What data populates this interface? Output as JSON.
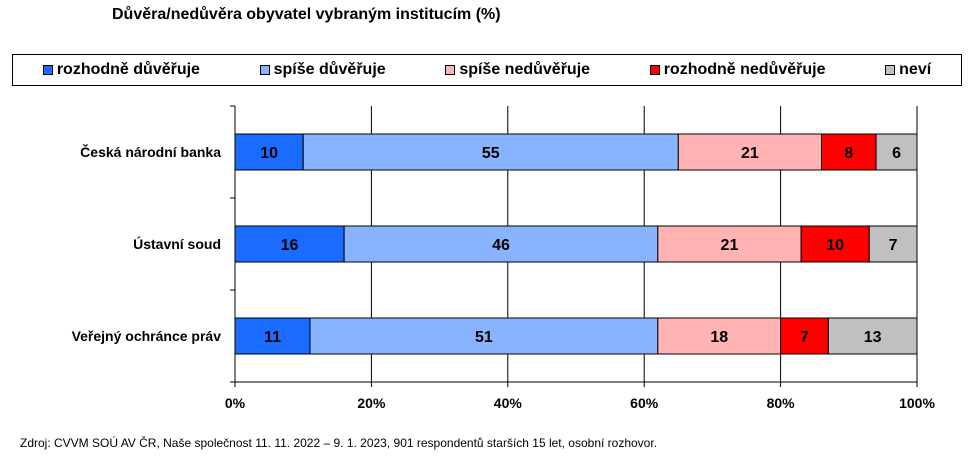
{
  "chart_data": {
    "type": "bar",
    "orientation": "horizontal",
    "stacked": true,
    "title": "Důvěra/nedůvěra obyvatel vybraným institucím (%)",
    "categories": [
      "Česká národní banka",
      "Ústavní soud",
      "Veřejný ochránce práv"
    ],
    "series": [
      {
        "name": "rozhodně důvěřuje",
        "color": "#1a6bff",
        "values": [
          10,
          16,
          11
        ]
      },
      {
        "name": "spíše důvěřuje",
        "color": "#88b4ff",
        "values": [
          55,
          46,
          51
        ]
      },
      {
        "name": "spíše nedůvěřuje",
        "color": "#ffb3b3",
        "values": [
          21,
          21,
          18
        ]
      },
      {
        "name": "rozhodně nedůvěřuje",
        "color": "#ff0000",
        "values": [
          8,
          10,
          7
        ]
      },
      {
        "name": "neví",
        "color": "#c0c0c0",
        "values": [
          6,
          7,
          13
        ]
      }
    ],
    "xlim": [
      0,
      100
    ],
    "xticks": [
      "0%",
      "20%",
      "40%",
      "60%",
      "80%",
      "100%"
    ],
    "legend_position": "top",
    "grid": "vertical"
  },
  "footer": "Zdroj: CVVM SOÚ AV ČR, Naše společnost 11. 11. 2022 – 9. 1. 2023, 901 respondentů starších 15 let, osobní rozhovor."
}
